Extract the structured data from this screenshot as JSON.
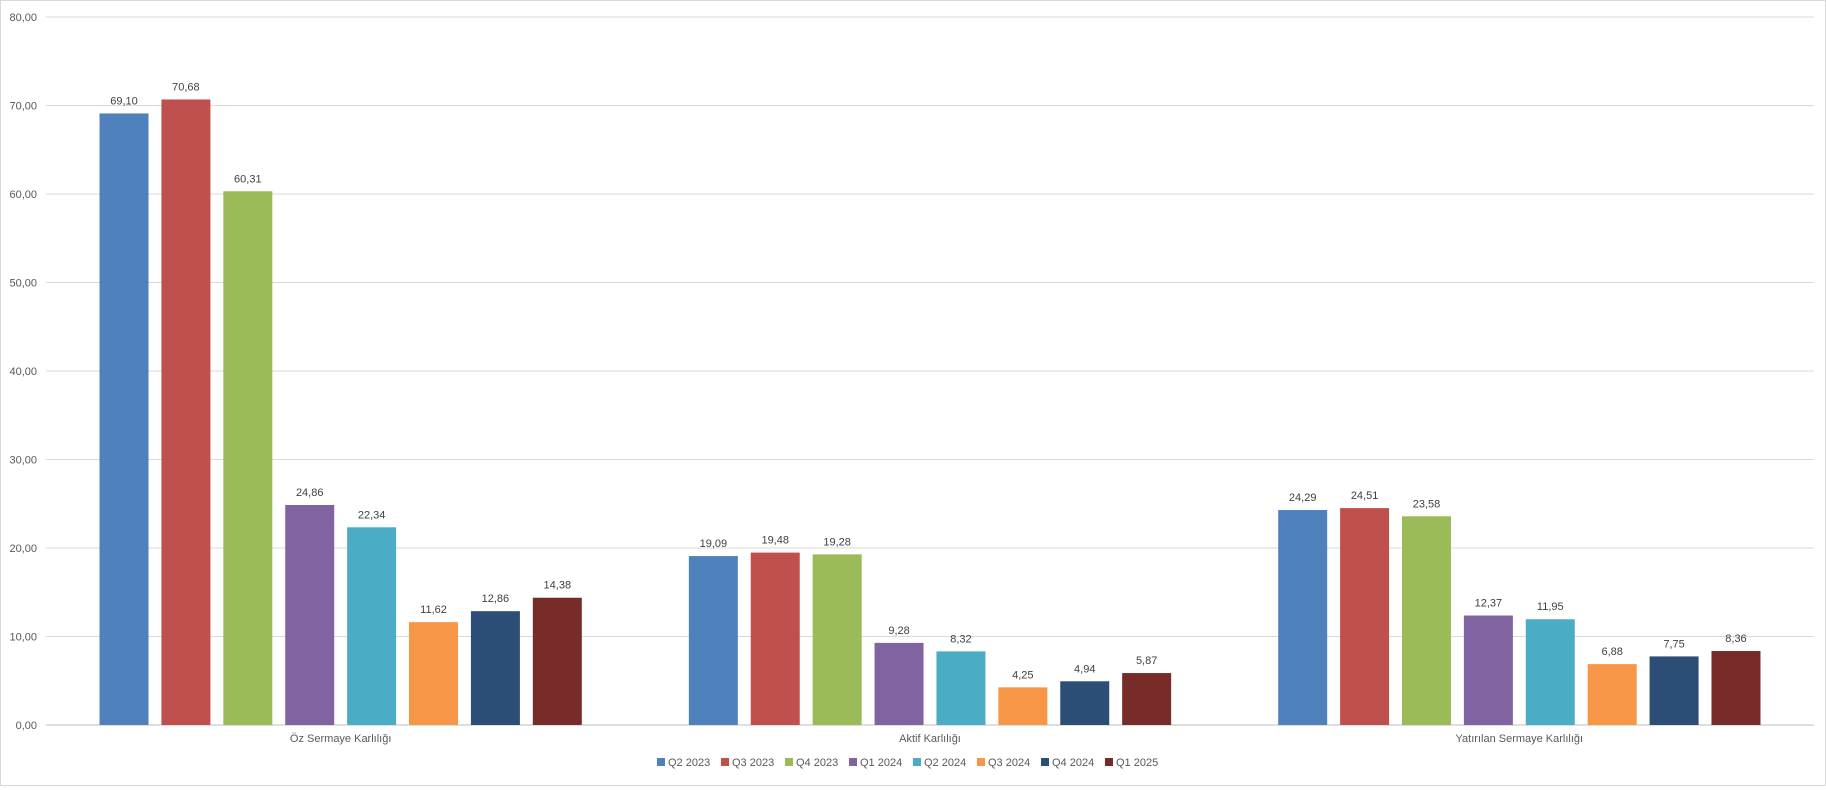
{
  "chart_data": {
    "type": "bar",
    "title": "",
    "xlabel": "",
    "ylabel": "",
    "ylim": [
      0,
      80
    ],
    "yticks": [
      "0,00",
      "10,00",
      "20,00",
      "30,00",
      "40,00",
      "50,00",
      "60,00",
      "70,00",
      "80,00"
    ],
    "grid": true,
    "legend_position": "bottom",
    "categories": [
      "Öz Sermaye Karlılığı",
      "Aktif Karlılığı",
      "Yatırılan Sermaye Karlılığı"
    ],
    "series": [
      {
        "name": "Q2 2023",
        "color": "#4f81bd",
        "values": [
          69.1,
          19.09,
          24.29
        ],
        "labels": [
          "69,10",
          "19,09",
          "24,29"
        ]
      },
      {
        "name": "Q3 2023",
        "color": "#c0504d",
        "values": [
          70.68,
          19.48,
          24.51
        ],
        "labels": [
          "70,68",
          "19,48",
          "24,51"
        ]
      },
      {
        "name": "Q4 2023",
        "color": "#9bbb59",
        "values": [
          60.31,
          19.28,
          23.58
        ],
        "labels": [
          "60,31",
          "19,28",
          "23,58"
        ]
      },
      {
        "name": "Q1 2024",
        "color": "#8064a2",
        "values": [
          24.86,
          9.28,
          12.37
        ],
        "labels": [
          "24,86",
          "9,28",
          "12,37"
        ]
      },
      {
        "name": "Q2 2024",
        "color": "#4bacc6",
        "values": [
          22.34,
          8.32,
          11.95
        ],
        "labels": [
          "22,34",
          "8,32",
          "11,95"
        ]
      },
      {
        "name": "Q3 2024",
        "color": "#f79646",
        "values": [
          11.62,
          4.25,
          6.88
        ],
        "labels": [
          "11,62",
          "4,25",
          "6,88"
        ]
      },
      {
        "name": "Q4 2024",
        "color": "#2c4d75",
        "values": [
          12.86,
          4.94,
          7.75
        ],
        "labels": [
          "12,86",
          "4,94",
          "7,75"
        ]
      },
      {
        "name": "Q1 2025",
        "color": "#772c2a",
        "values": [
          14.38,
          5.87,
          8.36
        ],
        "labels": [
          "14,38",
          "5,87",
          "8,36"
        ]
      }
    ]
  }
}
